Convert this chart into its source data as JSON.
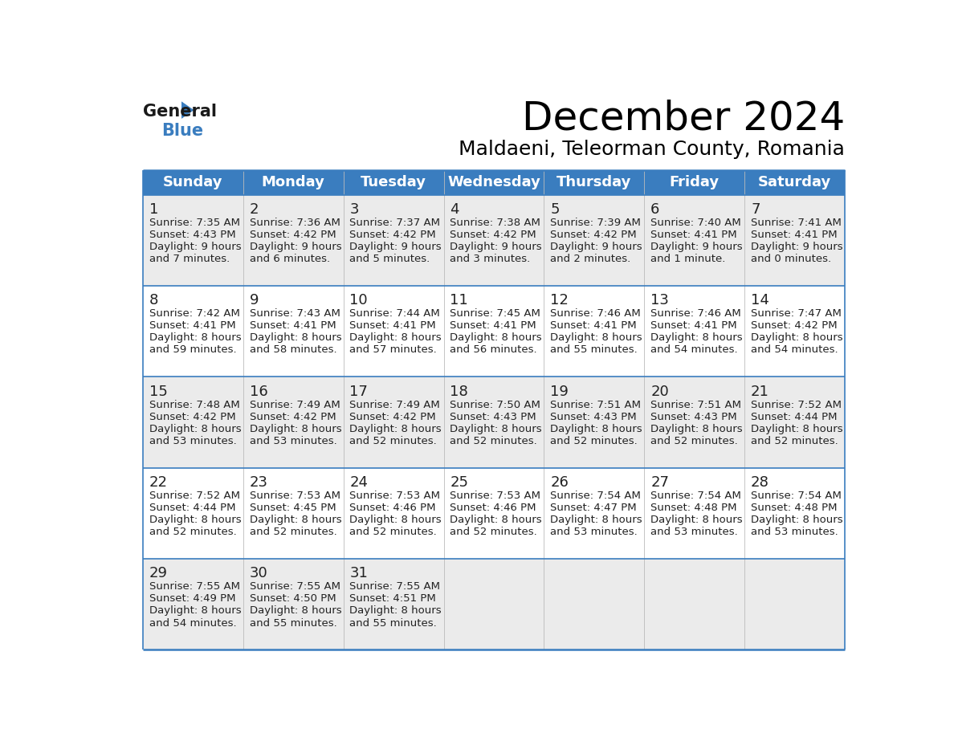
{
  "title": "December 2024",
  "subtitle": "Maldaeni, Teleorman County, Romania",
  "header_bg_color": "#3a7dbf",
  "header_text_color": "#ffffff",
  "cell_bg_color_light": "#ebebeb",
  "cell_bg_color_white": "#ffffff",
  "grid_line_color": "#3a7dbf",
  "text_color": "#222222",
  "days_of_week": [
    "Sunday",
    "Monday",
    "Tuesday",
    "Wednesday",
    "Thursday",
    "Friday",
    "Saturday"
  ],
  "weeks": [
    [
      {
        "day": 1,
        "sunrise": "7:35 AM",
        "sunset": "4:43 PM",
        "daylight": "9 hours and 7 minutes."
      },
      {
        "day": 2,
        "sunrise": "7:36 AM",
        "sunset": "4:42 PM",
        "daylight": "9 hours and 6 minutes."
      },
      {
        "day": 3,
        "sunrise": "7:37 AM",
        "sunset": "4:42 PM",
        "daylight": "9 hours and 5 minutes."
      },
      {
        "day": 4,
        "sunrise": "7:38 AM",
        "sunset": "4:42 PM",
        "daylight": "9 hours and 3 minutes."
      },
      {
        "day": 5,
        "sunrise": "7:39 AM",
        "sunset": "4:42 PM",
        "daylight": "9 hours and 2 minutes."
      },
      {
        "day": 6,
        "sunrise": "7:40 AM",
        "sunset": "4:41 PM",
        "daylight": "9 hours and 1 minute."
      },
      {
        "day": 7,
        "sunrise": "7:41 AM",
        "sunset": "4:41 PM",
        "daylight": "9 hours and 0 minutes."
      }
    ],
    [
      {
        "day": 8,
        "sunrise": "7:42 AM",
        "sunset": "4:41 PM",
        "daylight": "8 hours and 59 minutes."
      },
      {
        "day": 9,
        "sunrise": "7:43 AM",
        "sunset": "4:41 PM",
        "daylight": "8 hours and 58 minutes."
      },
      {
        "day": 10,
        "sunrise": "7:44 AM",
        "sunset": "4:41 PM",
        "daylight": "8 hours and 57 minutes."
      },
      {
        "day": 11,
        "sunrise": "7:45 AM",
        "sunset": "4:41 PM",
        "daylight": "8 hours and 56 minutes."
      },
      {
        "day": 12,
        "sunrise": "7:46 AM",
        "sunset": "4:41 PM",
        "daylight": "8 hours and 55 minutes."
      },
      {
        "day": 13,
        "sunrise": "7:46 AM",
        "sunset": "4:41 PM",
        "daylight": "8 hours and 54 minutes."
      },
      {
        "day": 14,
        "sunrise": "7:47 AM",
        "sunset": "4:42 PM",
        "daylight": "8 hours and 54 minutes."
      }
    ],
    [
      {
        "day": 15,
        "sunrise": "7:48 AM",
        "sunset": "4:42 PM",
        "daylight": "8 hours and 53 minutes."
      },
      {
        "day": 16,
        "sunrise": "7:49 AM",
        "sunset": "4:42 PM",
        "daylight": "8 hours and 53 minutes."
      },
      {
        "day": 17,
        "sunrise": "7:49 AM",
        "sunset": "4:42 PM",
        "daylight": "8 hours and 52 minutes."
      },
      {
        "day": 18,
        "sunrise": "7:50 AM",
        "sunset": "4:43 PM",
        "daylight": "8 hours and 52 minutes."
      },
      {
        "day": 19,
        "sunrise": "7:51 AM",
        "sunset": "4:43 PM",
        "daylight": "8 hours and 52 minutes."
      },
      {
        "day": 20,
        "sunrise": "7:51 AM",
        "sunset": "4:43 PM",
        "daylight": "8 hours and 52 minutes."
      },
      {
        "day": 21,
        "sunrise": "7:52 AM",
        "sunset": "4:44 PM",
        "daylight": "8 hours and 52 minutes."
      }
    ],
    [
      {
        "day": 22,
        "sunrise": "7:52 AM",
        "sunset": "4:44 PM",
        "daylight": "8 hours and 52 minutes."
      },
      {
        "day": 23,
        "sunrise": "7:53 AM",
        "sunset": "4:45 PM",
        "daylight": "8 hours and 52 minutes."
      },
      {
        "day": 24,
        "sunrise": "7:53 AM",
        "sunset": "4:46 PM",
        "daylight": "8 hours and 52 minutes."
      },
      {
        "day": 25,
        "sunrise": "7:53 AM",
        "sunset": "4:46 PM",
        "daylight": "8 hours and 52 minutes."
      },
      {
        "day": 26,
        "sunrise": "7:54 AM",
        "sunset": "4:47 PM",
        "daylight": "8 hours and 53 minutes."
      },
      {
        "day": 27,
        "sunrise": "7:54 AM",
        "sunset": "4:48 PM",
        "daylight": "8 hours and 53 minutes."
      },
      {
        "day": 28,
        "sunrise": "7:54 AM",
        "sunset": "4:48 PM",
        "daylight": "8 hours and 53 minutes."
      }
    ],
    [
      {
        "day": 29,
        "sunrise": "7:55 AM",
        "sunset": "4:49 PM",
        "daylight": "8 hours and 54 minutes."
      },
      {
        "day": 30,
        "sunrise": "7:55 AM",
        "sunset": "4:50 PM",
        "daylight": "8 hours and 55 minutes."
      },
      {
        "day": 31,
        "sunrise": "7:55 AM",
        "sunset": "4:51 PM",
        "daylight": "8 hours and 55 minutes."
      },
      null,
      null,
      null,
      null
    ]
  ],
  "logo_text_general": "General",
  "logo_text_blue": "Blue",
  "logo_triangle_color": "#3a7dbf",
  "title_fontsize": 36,
  "subtitle_fontsize": 18,
  "header_fontsize": 13,
  "day_num_fontsize": 13,
  "cell_text_fontsize": 9.5
}
